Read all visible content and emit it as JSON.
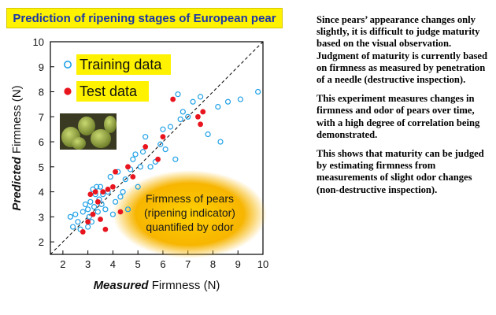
{
  "chart_data": {
    "type": "scatter",
    "title": "Prediction of ripening stages of European pear",
    "xlabel_emphasis": "Measured",
    "xlabel_rest": " Firmness (N)",
    "ylabel_emphasis": "Predicted",
    "ylabel_rest": " Firmness (N)",
    "xlim": [
      1.5,
      10
    ],
    "ylim": [
      1.5,
      10
    ],
    "xticks": [
      2,
      3,
      4,
      5,
      6,
      7,
      8,
      9,
      10
    ],
    "yticks": [
      2,
      3,
      4,
      5,
      6,
      7,
      8,
      9,
      10
    ],
    "diagonal": "y = x (dashed)",
    "legend_position": "top-left",
    "series": [
      {
        "name": "Training data",
        "marker": "open-circle",
        "color": "#1ea0e6",
        "points": [
          [
            2.3,
            3.0
          ],
          [
            2.4,
            2.6
          ],
          [
            2.5,
            3.1
          ],
          [
            2.6,
            2.8
          ],
          [
            2.7,
            2.5
          ],
          [
            2.8,
            3.2
          ],
          [
            2.9,
            3.5
          ],
          [
            3.0,
            2.6
          ],
          [
            3.0,
            3.3
          ],
          [
            3.05,
            3.0
          ],
          [
            3.1,
            3.6
          ],
          [
            3.15,
            2.8
          ],
          [
            3.2,
            4.1
          ],
          [
            3.25,
            3.4
          ],
          [
            3.3,
            3.9
          ],
          [
            3.35,
            4.2
          ],
          [
            3.4,
            3.2
          ],
          [
            3.45,
            3.7
          ],
          [
            3.5,
            4.2
          ],
          [
            3.55,
            3.5
          ],
          [
            3.6,
            3.9
          ],
          [
            3.7,
            3.3
          ],
          [
            3.8,
            4.0
          ],
          [
            3.9,
            4.6
          ],
          [
            4.0,
            3.1
          ],
          [
            4.1,
            3.6
          ],
          [
            4.2,
            4.8
          ],
          [
            4.3,
            3.8
          ],
          [
            4.5,
            4.5
          ],
          [
            4.6,
            3.3
          ],
          [
            4.7,
            4.9
          ],
          [
            4.8,
            5.3
          ],
          [
            4.9,
            5.5
          ],
          [
            5.0,
            4.2
          ],
          [
            5.2,
            5.6
          ],
          [
            5.3,
            6.2
          ],
          [
            5.5,
            5.0
          ],
          [
            5.7,
            5.2
          ],
          [
            5.9,
            5.9
          ],
          [
            6.1,
            5.7
          ],
          [
            6.3,
            6.6
          ],
          [
            6.5,
            5.3
          ],
          [
            6.7,
            6.9
          ],
          [
            6.8,
            7.2
          ],
          [
            7.0,
            7.0
          ],
          [
            7.2,
            7.6
          ],
          [
            7.5,
            7.8
          ],
          [
            7.8,
            6.3
          ],
          [
            8.2,
            7.4
          ],
          [
            8.6,
            7.6
          ],
          [
            9.1,
            7.7
          ],
          [
            9.8,
            8.0
          ],
          [
            8.3,
            6.0
          ],
          [
            6.6,
            7.9
          ],
          [
            6.0,
            6.5
          ],
          [
            5.1,
            5.0
          ],
          [
            4.4,
            4.0
          ]
        ]
      },
      {
        "name": "Test data",
        "marker": "filled-circle",
        "color": "#e8141e",
        "points": [
          [
            2.8,
            2.4
          ],
          [
            3.0,
            2.8
          ],
          [
            3.1,
            3.9
          ],
          [
            3.2,
            3.1
          ],
          [
            3.4,
            3.6
          ],
          [
            3.5,
            2.9
          ],
          [
            3.6,
            4.0
          ],
          [
            3.7,
            2.5
          ],
          [
            3.8,
            4.1
          ],
          [
            4.1,
            4.8
          ],
          [
            4.3,
            3.2
          ],
          [
            4.6,
            5.0
          ],
          [
            4.8,
            4.6
          ],
          [
            5.3,
            5.8
          ],
          [
            5.8,
            5.3
          ],
          [
            6.0,
            6.2
          ],
          [
            6.4,
            7.7
          ],
          [
            7.4,
            7.0
          ],
          [
            7.5,
            6.7
          ],
          [
            7.6,
            7.2
          ],
          [
            3.3,
            4.0
          ],
          [
            4.0,
            4.2
          ]
        ]
      }
    ],
    "annotation_oval": [
      "Firmness of pears",
      "(ripening indicator)",
      "quantified by odor"
    ]
  },
  "paragraphs": [
    "Since pears’ appearance changes only slightly, it is difficult to judge maturity based on the visual observation. Judgment of maturity is currently based on firmness as measured by penetration of a needle (destructive inspection).",
    "This experiment measures changes in firmness and odor of pears over time, with a high degree of correlation being demonstrated.",
    "This shows that maturity can be judged by estimating firmness from measurements of slight odor changes (non-destructive inspection)."
  ],
  "colors": {
    "title_bg": "#fff200",
    "title_text": "#1a37a8",
    "legend_bg": "#fff200",
    "oval": "#f6b000",
    "photo_icon": "pear-photo"
  }
}
